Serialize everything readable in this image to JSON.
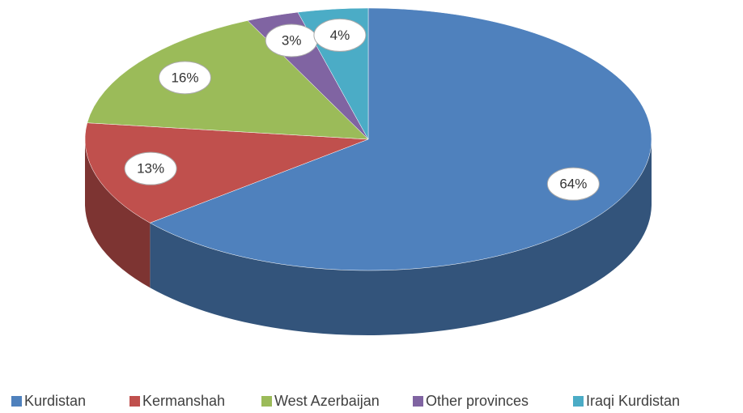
{
  "chart_data": {
    "type": "pie3d",
    "categories": [
      "Kurdistan",
      "Kermanshah",
      "West Azerbaijan",
      "Other provinces",
      "Iraqi Kurdistan"
    ],
    "values": [
      64,
      13,
      16,
      3,
      4
    ],
    "value_labels": [
      "64%",
      "13%",
      "16%",
      "3%",
      "4%"
    ],
    "colors": [
      "#4f81bd",
      "#c0504d",
      "#9bbb59",
      "#8064a2",
      "#4bacc6"
    ],
    "legend": "bottom"
  }
}
